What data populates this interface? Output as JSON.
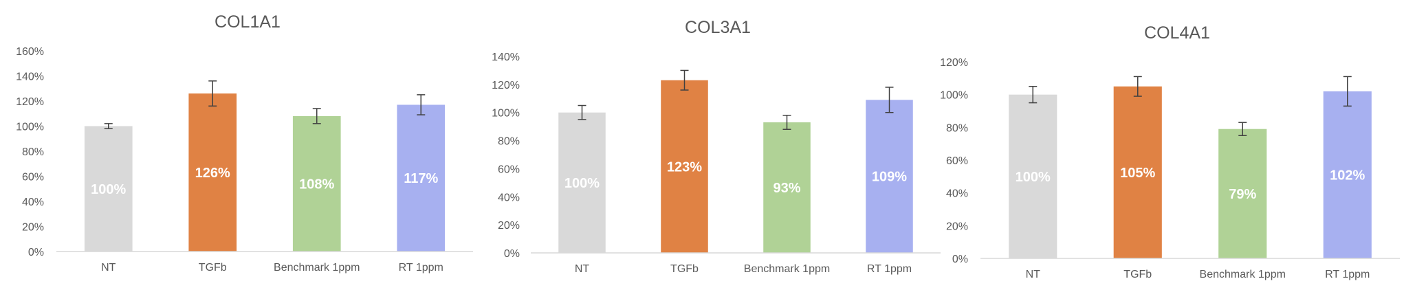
{
  "chart_data": [
    {
      "type": "bar",
      "title": "COL1A1",
      "categories": [
        "NT",
        "TGFb",
        "Benchmark 1ppm",
        "RT 1ppm"
      ],
      "values": [
        100,
        126,
        108,
        117
      ],
      "data_labels": [
        "100%",
        "126%",
        "108%",
        "117%"
      ],
      "error": [
        2,
        10,
        6,
        8
      ],
      "colors": [
        "#d9d9d9",
        "#e08244",
        "#b0d296",
        "#a7b0f0"
      ],
      "ylim": [
        0,
        160
      ],
      "yticks": [
        0,
        20,
        40,
        60,
        80,
        100,
        120,
        140,
        160
      ],
      "ytick_labels": [
        "0%",
        "20%",
        "40%",
        "60%",
        "80%",
        "100%",
        "120%",
        "140%",
        "160%"
      ],
      "grid": false,
      "xlabel": "",
      "ylabel": ""
    },
    {
      "type": "bar",
      "title": "COL3A1",
      "categories": [
        "NT",
        "TGFb",
        "Benchmark 1ppm",
        "RT 1ppm"
      ],
      "values": [
        100,
        123,
        93,
        109
      ],
      "data_labels": [
        "100%",
        "123%",
        "93%",
        "109%"
      ],
      "error": [
        5,
        7,
        5,
        9
      ],
      "colors": [
        "#d9d9d9",
        "#e08244",
        "#b0d296",
        "#a7b0f0"
      ],
      "ylim": [
        0,
        140
      ],
      "yticks": [
        0,
        20,
        40,
        60,
        80,
        100,
        120,
        140
      ],
      "ytick_labels": [
        "0%",
        "20%",
        "40%",
        "60%",
        "80%",
        "100%",
        "120%",
        "140%"
      ],
      "grid": false,
      "xlabel": "",
      "ylabel": ""
    },
    {
      "type": "bar",
      "title": "COL4A1",
      "categories": [
        "NT",
        "TGFb",
        "Benchmark 1ppm",
        "RT 1ppm"
      ],
      "values": [
        100,
        105,
        79,
        102
      ],
      "data_labels": [
        "100%",
        "105%",
        "79%",
        "102%"
      ],
      "error": [
        5,
        6,
        4,
        9
      ],
      "colors": [
        "#d9d9d9",
        "#e08244",
        "#b0d296",
        "#a7b0f0"
      ],
      "ylim": [
        0,
        120
      ],
      "yticks": [
        0,
        20,
        40,
        60,
        80,
        100,
        120
      ],
      "ytick_labels": [
        "0%",
        "20%",
        "40%",
        "60%",
        "80%",
        "100%",
        "120%"
      ],
      "grid": false,
      "xlabel": "",
      "ylabel": ""
    }
  ]
}
